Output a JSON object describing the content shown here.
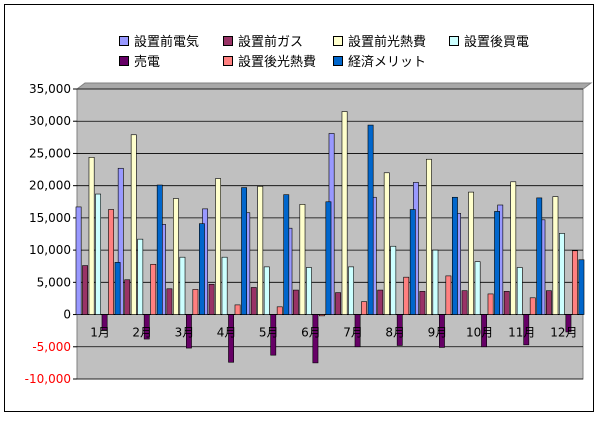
{
  "chart_data": {
    "type": "bar",
    "categories": [
      "1月",
      "2月",
      "3月",
      "4月",
      "5月",
      "6月",
      "7月",
      "8月",
      "9月",
      "10月",
      "11月",
      "12月"
    ],
    "ylim": [
      -10000,
      35000
    ],
    "yticks": [
      -10000,
      -5000,
      0,
      5000,
      10000,
      15000,
      20000,
      25000,
      30000,
      35000
    ],
    "ytick_labels": [
      "-10,000",
      "-5,000",
      "0",
      "5,000",
      "10,000",
      "15,000",
      "20,000",
      "25,000",
      "30,000",
      "35,000"
    ],
    "grid": true,
    "legend_position": "top",
    "plot_background": "#c0c0c0",
    "series": [
      {
        "name": "設置前電気",
        "color": "#9999ff",
        "values": [
          16700,
          22700,
          14000,
          16400,
          15800,
          13400,
          28100,
          18200,
          20500,
          15700,
          17000,
          14700
        ]
      },
      {
        "name": "設置前ガス",
        "color": "#993366",
        "values": [
          7600,
          5400,
          4000,
          4700,
          4200,
          3800,
          3400,
          3800,
          3600,
          3700,
          3600,
          3700
        ]
      },
      {
        "name": "設置前光熱費",
        "color": "#ffffcc",
        "values": [
          24400,
          27900,
          18000,
          21100,
          19900,
          17100,
          31500,
          22000,
          24100,
          19000,
          20600,
          18300
        ]
      },
      {
        "name": "設置後買電",
        "color": "#ccffff",
        "values": [
          18700,
          11700,
          8900,
          8900,
          7400,
          7300,
          7400,
          10600,
          10000,
          8200,
          7300,
          12600
        ]
      },
      {
        "name": "売電",
        "color": "#660066",
        "values": [
          -2400,
          -3800,
          -5200,
          -7400,
          -6300,
          -7500,
          -5000,
          -4800,
          -5100,
          -5000,
          -4700,
          -2700
        ]
      },
      {
        "name": "設置後光熱費",
        "color": "#ff8080",
        "values": [
          16300,
          7800,
          3900,
          1500,
          1200,
          -200,
          2000,
          5800,
          6000,
          3200,
          2600,
          9900
        ]
      },
      {
        "name": "経済メリット",
        "color": "#0066cc",
        "values": [
          8100,
          20100,
          14100,
          19700,
          18600,
          17500,
          29400,
          16300,
          18200,
          16000,
          18100,
          8500
        ]
      }
    ]
  }
}
